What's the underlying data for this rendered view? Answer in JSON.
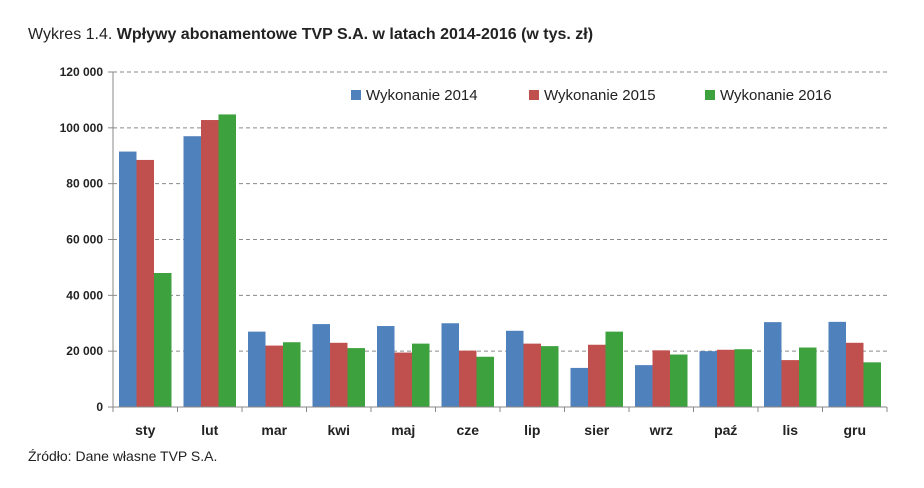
{
  "title": {
    "prefix": "Wykres 1.4.",
    "main": "Wpływy abonamentowe TVP S.A. w latach 2014-2016 (w tys. zł)"
  },
  "source": "Źródło: Dane własne TVP S.A.",
  "chart_data": {
    "type": "bar",
    "title": "Wpływy abonamentowe TVP S.A. w latach 2014-2016 (w tys. zł)",
    "categories": [
      "sty",
      "lut",
      "mar",
      "kwi",
      "maj",
      "cze",
      "lip",
      "sier",
      "wrz",
      "paź",
      "lis",
      "gru"
    ],
    "series": [
      {
        "name": "Wykonanie 2014",
        "color": "#4F81BD",
        "values": [
          91500,
          97000,
          27000,
          29700,
          29000,
          30000,
          27300,
          14000,
          15000,
          20000,
          30400,
          30500
        ]
      },
      {
        "name": "Wykonanie 2015",
        "color": "#C0504D",
        "values": [
          88500,
          102800,
          22000,
          23000,
          19500,
          20200,
          22700,
          22300,
          20300,
          20500,
          16800,
          23000
        ]
      },
      {
        "name": "Wykonanie 2016",
        "color": "#3DA13D",
        "values": [
          48000,
          104800,
          23200,
          21100,
          22700,
          18000,
          21800,
          27000,
          18800,
          20700,
          21300,
          16000
        ]
      }
    ],
    "yticks": [
      "0",
      "20 000",
      "40 000",
      "60 000",
      "80 000",
      "100 000",
      "120 000"
    ],
    "ylim": [
      0,
      120000
    ],
    "ytick_step": 20000,
    "xlabel": "",
    "ylabel": "",
    "legend": "top-right",
    "grid": "horizontal-dashed"
  }
}
